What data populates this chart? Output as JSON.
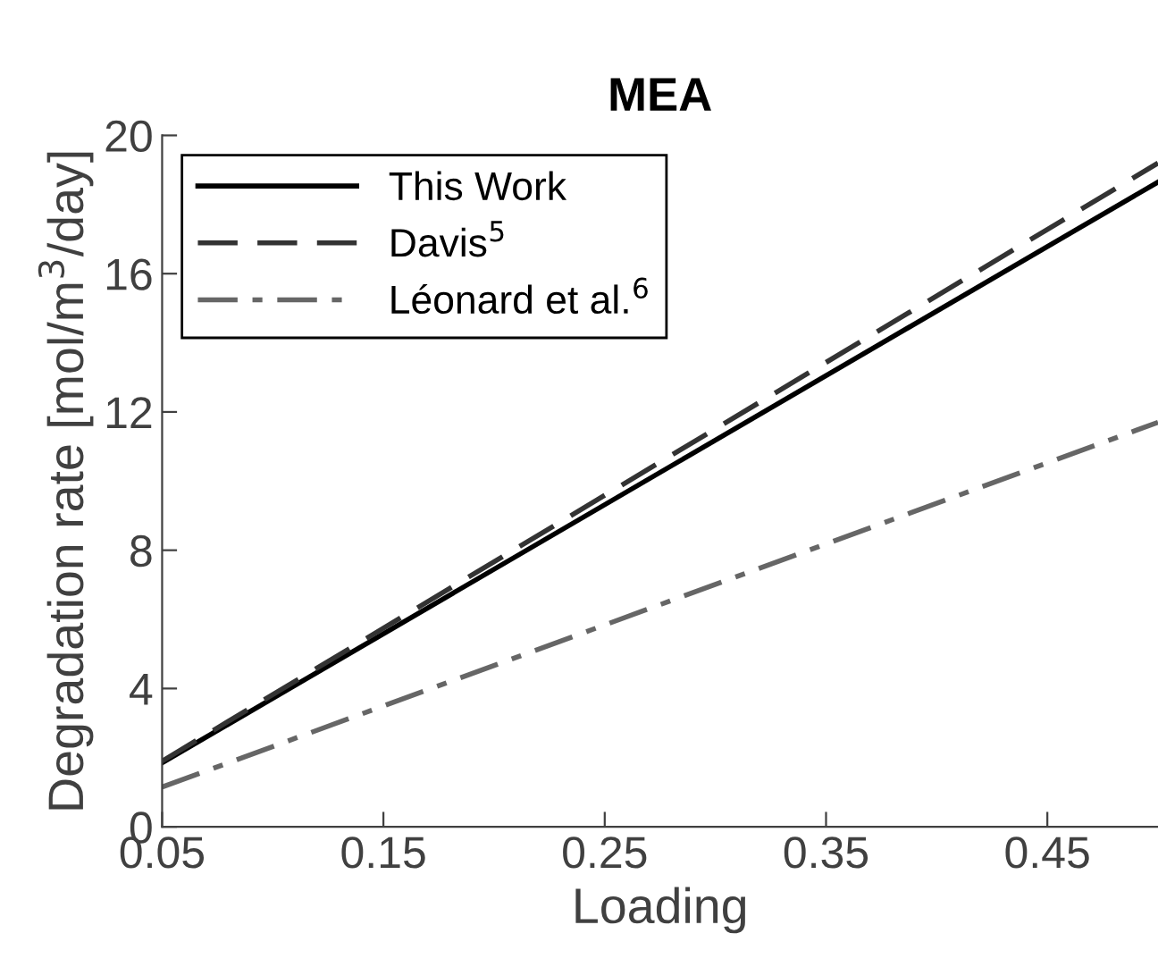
{
  "chart_data": {
    "type": "line",
    "title": "MEA",
    "xlabel": "Loading",
    "ylabel": "Degradation rate [mol/m$^{3}$/day]",
    "x": [
      0.05,
      0.5
    ],
    "series": [
      {
        "name": "This Work",
        "color": "#000000",
        "line_style": "solid",
        "values": [
          1.85,
          18.65
        ]
      },
      {
        "name": "Davis$^{5}$",
        "color": "#333333",
        "line_style": "dashed",
        "values": [
          1.9,
          19.2
        ]
      },
      {
        "name": "Léonard et al.$^{6}$",
        "color": "#666666",
        "line_style": "dashdot",
        "values": [
          1.15,
          11.7
        ]
      }
    ],
    "xlim": [
      0.05,
      0.5
    ],
    "xticks": [
      0.05,
      0.15,
      0.25,
      0.35,
      0.45
    ],
    "ylim": [
      0,
      20
    ],
    "yticks": [
      0,
      4,
      8,
      12,
      16,
      20
    ],
    "grid": false,
    "legend": "top left",
    "marker": "none"
  }
}
